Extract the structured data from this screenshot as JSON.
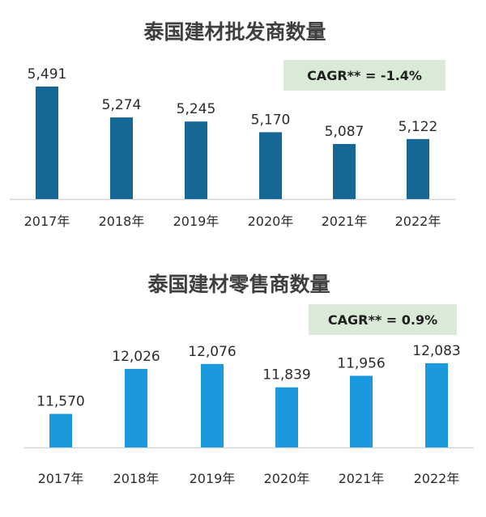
{
  "chart_data": [
    {
      "type": "bar",
      "title": "泰国建材批发商数量",
      "categories": [
        "2017年",
        "2018年",
        "2019年",
        "2020年",
        "2021年",
        "2022年"
      ],
      "values": [
        5491,
        5274,
        5245,
        5170,
        5087,
        5122
      ],
      "value_labels": [
        "5,491",
        "5,274",
        "5,245",
        "5,170",
        "5,087",
        "5,122"
      ],
      "cagr": "CAGR** = -1.4%",
      "ylim": [
        4700,
        5491
      ],
      "grid": false,
      "colors": {
        "bar": "#156896",
        "badge": "#d9ebd6",
        "baseline": "#d4d4d4"
      }
    },
    {
      "type": "bar",
      "title": "泰国建材零售商数量",
      "categories": [
        "2017年",
        "2018年",
        "2019年",
        "2020年",
        "2021年",
        "2022年"
      ],
      "values": [
        11570,
        12026,
        12076,
        11839,
        11956,
        12083
      ],
      "value_labels": [
        "11,570",
        "12,026",
        "12,076",
        "11,839",
        "11,956",
        "12,083"
      ],
      "cagr": "CAGR** = 0.9%",
      "ylim": [
        11230,
        12083
      ],
      "grid": false,
      "colors": {
        "bar": "#1a99df",
        "badge": "#d9ebd6",
        "baseline": "#d4d4d4"
      }
    }
  ]
}
